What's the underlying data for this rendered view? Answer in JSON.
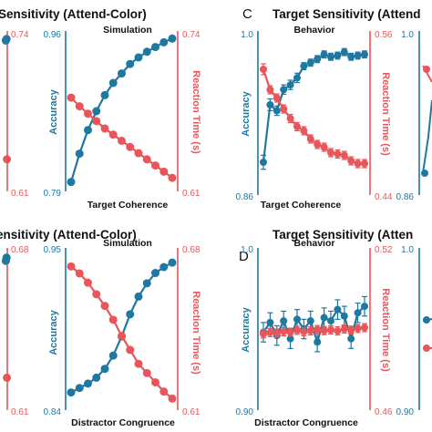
{
  "colors": {
    "accuracy": "#1f78a0",
    "reaction_time": "#e8565a",
    "text": "#111111"
  },
  "panel_letters": {
    "c": "C",
    "d": "D"
  },
  "titles": {
    "top_left": "Sensitivity (Attend-Color)",
    "top_right": "Target Sensitivity (Attend",
    "bottom_left": "ensitivity (Attend-Color)",
    "bottom_right": "Target Sensitivity (Atten"
  },
  "chart_data": [
    {
      "type": "line",
      "title": "Simulation",
      "xlabel": "Target Coherence",
      "ylabel": "Accuracy",
      "y2label": "Reaction Time (s)",
      "ylim": [
        0.79,
        0.96
      ],
      "y2lim": [
        0.61,
        0.74
      ],
      "yticks": [
        "0.96",
        "0.79"
      ],
      "y2ticks": [
        "0.74",
        "0.61"
      ],
      "x": [
        1,
        2,
        3,
        4,
        5,
        6,
        7,
        8,
        9,
        10,
        11,
        12,
        13
      ],
      "series": [
        {
          "name": "Accuracy",
          "axis": "left",
          "values": [
            0.8,
            0.83,
            0.855,
            0.875,
            0.892,
            0.905,
            0.915,
            0.925,
            0.932,
            0.938,
            0.943,
            0.948,
            0.952
          ]
        },
        {
          "name": "Reaction Time (s)",
          "axis": "right",
          "values": [
            0.686,
            0.679,
            0.673,
            0.667,
            0.661,
            0.656,
            0.651,
            0.646,
            0.641,
            0.636,
            0.631,
            0.626,
            0.621
          ]
        }
      ]
    },
    {
      "type": "line",
      "title": "Behavior",
      "xlabel": "Target Coherence",
      "ylabel": "Accuracy",
      "y2label": "Reaction Time (s)",
      "ylim": [
        0.86,
        1.0
      ],
      "y2lim": [
        0.44,
        0.56
      ],
      "yticks": [
        "1.0",
        "0.86"
      ],
      "y2ticks": [
        "0.56",
        "0.44"
      ],
      "x": [
        1,
        2,
        3,
        4,
        5,
        6,
        7,
        8,
        9,
        10,
        11,
        12,
        13,
        14,
        15,
        16
      ],
      "series": [
        {
          "name": "Accuracy",
          "axis": "left",
          "values": [
            0.888,
            0.937,
            0.932,
            0.95,
            0.954,
            0.96,
            0.97,
            0.973,
            0.976,
            0.98,
            0.978,
            0.979,
            0.982,
            0.978,
            0.979,
            0.98
          ],
          "errors": [
            0.006,
            0.005,
            0.004,
            0.004,
            0.004,
            0.004,
            0.003,
            0.003,
            0.003,
            0.003,
            0.003,
            0.003,
            0.003,
            0.003,
            0.003,
            0.003
          ]
        },
        {
          "name": "Reaction Time (s)",
          "axis": "right",
          "values": [
            0.532,
            0.517,
            0.511,
            0.503,
            0.496,
            0.49,
            0.487,
            0.481,
            0.477,
            0.475,
            0.471,
            0.47,
            0.469,
            0.465,
            0.463,
            0.463
          ],
          "errors": [
            0.004,
            0.003,
            0.003,
            0.003,
            0.003,
            0.003,
            0.003,
            0.003,
            0.003,
            0.003,
            0.003,
            0.003,
            0.003,
            0.003,
            0.003,
            0.003
          ]
        }
      ]
    },
    {
      "type": "line",
      "title": "Simulation",
      "xlabel": "Distractor Congruence",
      "ylabel": "Accuracy",
      "y2label": "Reaction Time (s)",
      "ylim": [
        0.84,
        0.95
      ],
      "y2lim": [
        0.61,
        0.68
      ],
      "yticks": [
        "0.95",
        "0.84"
      ],
      "y2ticks": [
        "0.68",
        "0.61"
      ],
      "x": [
        1,
        2,
        3,
        4,
        5,
        6,
        7,
        8,
        9,
        10,
        11,
        12,
        13
      ],
      "series": [
        {
          "name": "Accuracy",
          "axis": "left",
          "values": [
            0.852,
            0.855,
            0.858,
            0.862,
            0.868,
            0.877,
            0.89,
            0.905,
            0.917,
            0.926,
            0.933,
            0.937,
            0.94
          ]
        },
        {
          "name": "Reaction Time (s)",
          "axis": "right",
          "values": [
            0.672,
            0.669,
            0.665,
            0.66,
            0.655,
            0.649,
            0.642,
            0.636,
            0.63,
            0.626,
            0.622,
            0.618,
            0.615
          ]
        }
      ]
    },
    {
      "type": "line",
      "title": "Behavior",
      "xlabel": "Distractor Congruence",
      "ylabel": "Accuracy",
      "y2label": "Reaction Time (s)",
      "ylim": [
        0.9,
        1.0
      ],
      "y2lim": [
        0.46,
        0.52
      ],
      "yticks": [
        "1.0",
        "0.90"
      ],
      "y2ticks": [
        "0.52",
        "0.46"
      ],
      "x": [
        1,
        2,
        3,
        4,
        5,
        6,
        7,
        8,
        9,
        10,
        11,
        12,
        13,
        14,
        15,
        16
      ],
      "series": [
        {
          "name": "Accuracy",
          "axis": "left",
          "values": [
            0.948,
            0.954,
            0.946,
            0.955,
            0.944,
            0.956,
            0.95,
            0.955,
            0.942,
            0.957,
            0.955,
            0.962,
            0.958,
            0.944,
            0.96,
            0.964
          ],
          "errors": [
            0.006,
            0.006,
            0.006,
            0.006,
            0.006,
            0.006,
            0.006,
            0.006,
            0.006,
            0.006,
            0.006,
            0.006,
            0.006,
            0.006,
            0.006,
            0.006
          ]
        },
        {
          "name": "Reaction Time (s)",
          "axis": "right",
          "values": [
            0.4882,
            0.4887,
            0.4885,
            0.489,
            0.4888,
            0.4895,
            0.489,
            0.4893,
            0.4898,
            0.4894,
            0.4897,
            0.4893,
            0.49,
            0.4896,
            0.4902,
            0.4905
          ],
          "errors": [
            0.0015,
            0.0015,
            0.0015,
            0.0015,
            0.0015,
            0.0015,
            0.0015,
            0.0015,
            0.0015,
            0.0015,
            0.0015,
            0.0015,
            0.0015,
            0.0015,
            0.0015,
            0.0015
          ]
        }
      ]
    }
  ],
  "cropped_left_panels": [
    {
      "yticks": [
        "1.0",
        ""
      ],
      "y2ticks": [
        "0.74",
        "0.61"
      ],
      "accuracy_points": [
        {
          "x": 0.8,
          "y": 0.94
        },
        {
          "x": 0.9,
          "y": 0.95
        }
      ],
      "rt_points": [
        {
          "x": 0.95,
          "y": 0.66
        }
      ]
    },
    {
      "yticks": [
        "",
        ""
      ],
      "y2ticks": [
        "0.68",
        "0.61"
      ],
      "accuracy_points": [
        {
          "x": 0.8,
          "y": 0.92
        },
        {
          "x": 0.9,
          "y": 0.94
        }
      ],
      "rt_points": [
        {
          "x": 0.95,
          "y": 0.64
        }
      ]
    }
  ],
  "cropped_right_panels": [
    {
      "y1tick_top": "1.0",
      "y1tick_bottom": "0.86",
      "accuracy_points": [
        0.9,
        0.95
      ],
      "rt_points": [
        0.5
      ]
    },
    {
      "y1tick_top": "1.0",
      "y1tick_bottom": "0.90",
      "accuracy_points": [
        0.96
      ],
      "rt_points": [
        0.49
      ]
    }
  ]
}
